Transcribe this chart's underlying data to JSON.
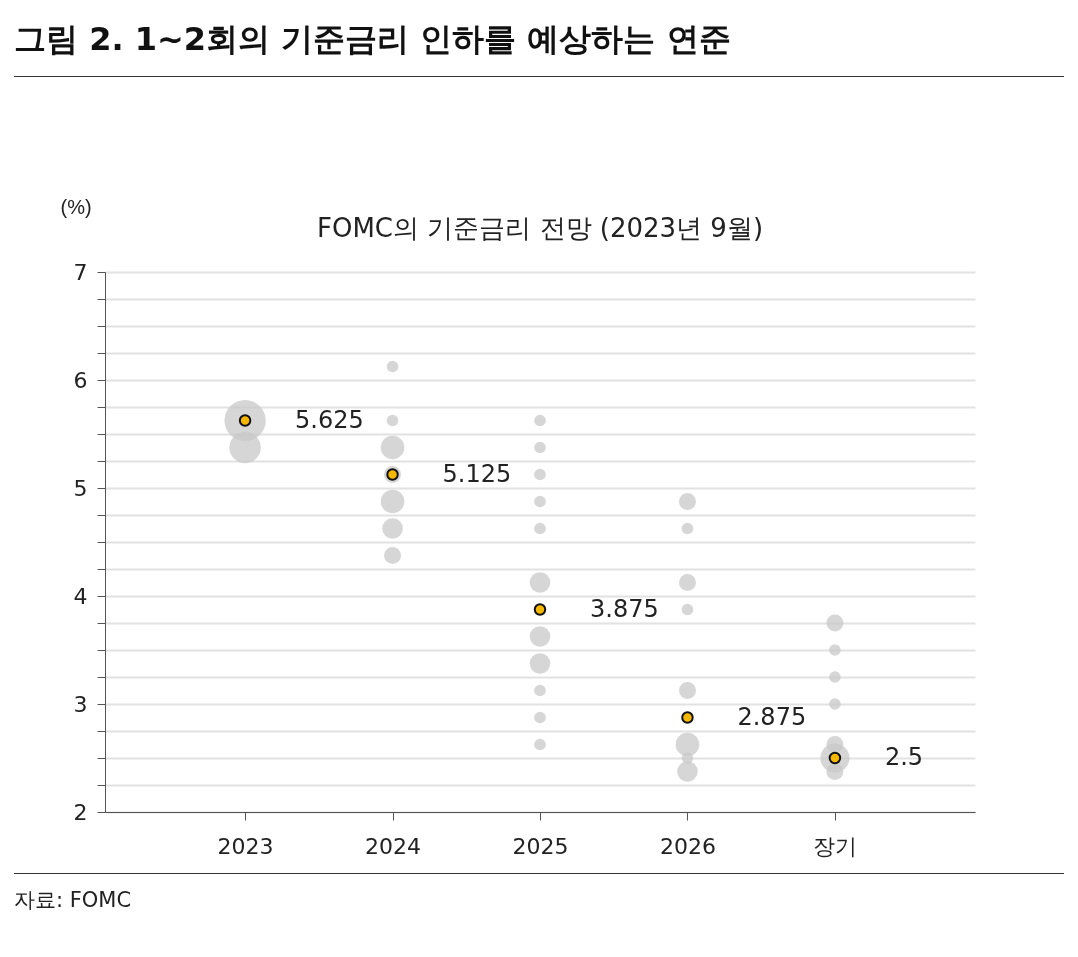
{
  "chart_data": {
    "type": "bubble",
    "title": "그림 2. 1~2회의 기준금리 인하를 예상하는 연준",
    "subtitle": "FOMC의 기준금리 전망 (2023년 9월)",
    "ylabel": "(%)",
    "annotations": [
      "자료: FOMC"
    ],
    "categories": [
      "2023",
      "2024",
      "2025",
      "2026",
      "장기"
    ],
    "ylim": [
      2,
      7
    ],
    "yticks": [
      2,
      {
        "value": 2.25,
        "label": null
      },
      {
        "value": 2.5,
        "label": null
      },
      {
        "value": 2.75,
        "label": null
      },
      3,
      {
        "value": 3.25,
        "label": null
      },
      {
        "value": 3.5,
        "label": null
      },
      {
        "value": 3.75,
        "label": null
      },
      4,
      {
        "value": 4.25,
        "label": null
      },
      {
        "value": 4.5,
        "label": null
      },
      {
        "value": 4.75,
        "label": null
      },
      5,
      {
        "value": 5.25,
        "label": null
      },
      {
        "value": 5.5,
        "label": null
      },
      {
        "value": 5.75,
        "label": null
      },
      6,
      {
        "value": 6.25,
        "label": null
      },
      {
        "value": 6.5,
        "label": null
      },
      {
        "value": 6.75,
        "label": null
      },
      7
    ],
    "grid": "y",
    "legend": false,
    "series": [
      {
        "type": "bubble",
        "color": "#c8c8c8",
        "values": [
          5.625,
          6.125,
          5.625,
          4.875,
          3.75
        ],
        "sizes": [
          1,
          0.08,
          0.08,
          0.17,
          0.17
        ]
      },
      {
        "type": "bubble",
        "color": "#c8c8c8",
        "values": [
          5.375,
          5.625,
          5.375,
          4.625,
          3.5
        ],
        "sizes": [
          0.58,
          0.08,
          0.08,
          0.08,
          0.08
        ]
      },
      {
        "type": "bubble",
        "color": "#c8c8c8",
        "values": [
          null,
          5.375,
          5.125,
          4.125,
          3.25
        ],
        "sizes": [
          null,
          0.33,
          0.08,
          0.17,
          0.08
        ]
      },
      {
        "type": "bubble",
        "color": "#c8c8c8",
        "values": [
          null,
          5.125,
          4.875,
          3.875,
          3
        ],
        "sizes": [
          null,
          0.17,
          0.08,
          0.08,
          0.08
        ]
      },
      {
        "type": "bubble",
        "color": "#c8c8c8",
        "values": [
          null,
          4.875,
          4.625,
          3.125,
          2.625
        ],
        "sizes": [
          null,
          0.33,
          0.08,
          0.17,
          0.17
        ]
      },
      {
        "type": "bubble",
        "color": "#c8c8c8",
        "values": [
          null,
          4.625,
          4.125,
          2.625,
          2.5
        ],
        "sizes": [
          null,
          0.25,
          0.25,
          0.33,
          0.5
        ]
      },
      {
        "type": "bubble",
        "color": "#c8c8c8",
        "values": [
          null,
          4.375,
          3.625,
          2.5,
          2.375
        ],
        "sizes": [
          null,
          0.17,
          0.25,
          0.08,
          0.17
        ]
      },
      {
        "type": "bubble",
        "color": "#c8c8c8",
        "values": [
          null,
          null,
          3.375,
          2.375,
          null
        ],
        "sizes": [
          null,
          null,
          0.25,
          0.25,
          null
        ]
      },
      {
        "type": "bubble",
        "color": "#c8c8c8",
        "values": [
          null,
          null,
          3.125,
          null,
          null
        ],
        "sizes": [
          null,
          null,
          0.08,
          null,
          null
        ]
      },
      {
        "type": "bubble",
        "color": "#c8c8c8",
        "values": [
          null,
          null,
          2.875,
          null,
          null
        ],
        "sizes": [
          null,
          null,
          0.08,
          null,
          null
        ]
      },
      {
        "type": "bubble",
        "color": "#c8c8c8",
        "values": [
          null,
          null,
          2.625,
          null,
          null
        ],
        "sizes": [
          null,
          null,
          0.08,
          null,
          null
        ]
      },
      {
        "type": "scatter",
        "color": "#f5b800",
        "marker": "circle",
        "values": [
          5.625,
          5.125,
          3.875,
          2.875,
          2.5
        ],
        "value_labels": [
          "5.625",
          "5.125",
          "3.875",
          "2.875",
          "2.5"
        ]
      }
    ]
  }
}
